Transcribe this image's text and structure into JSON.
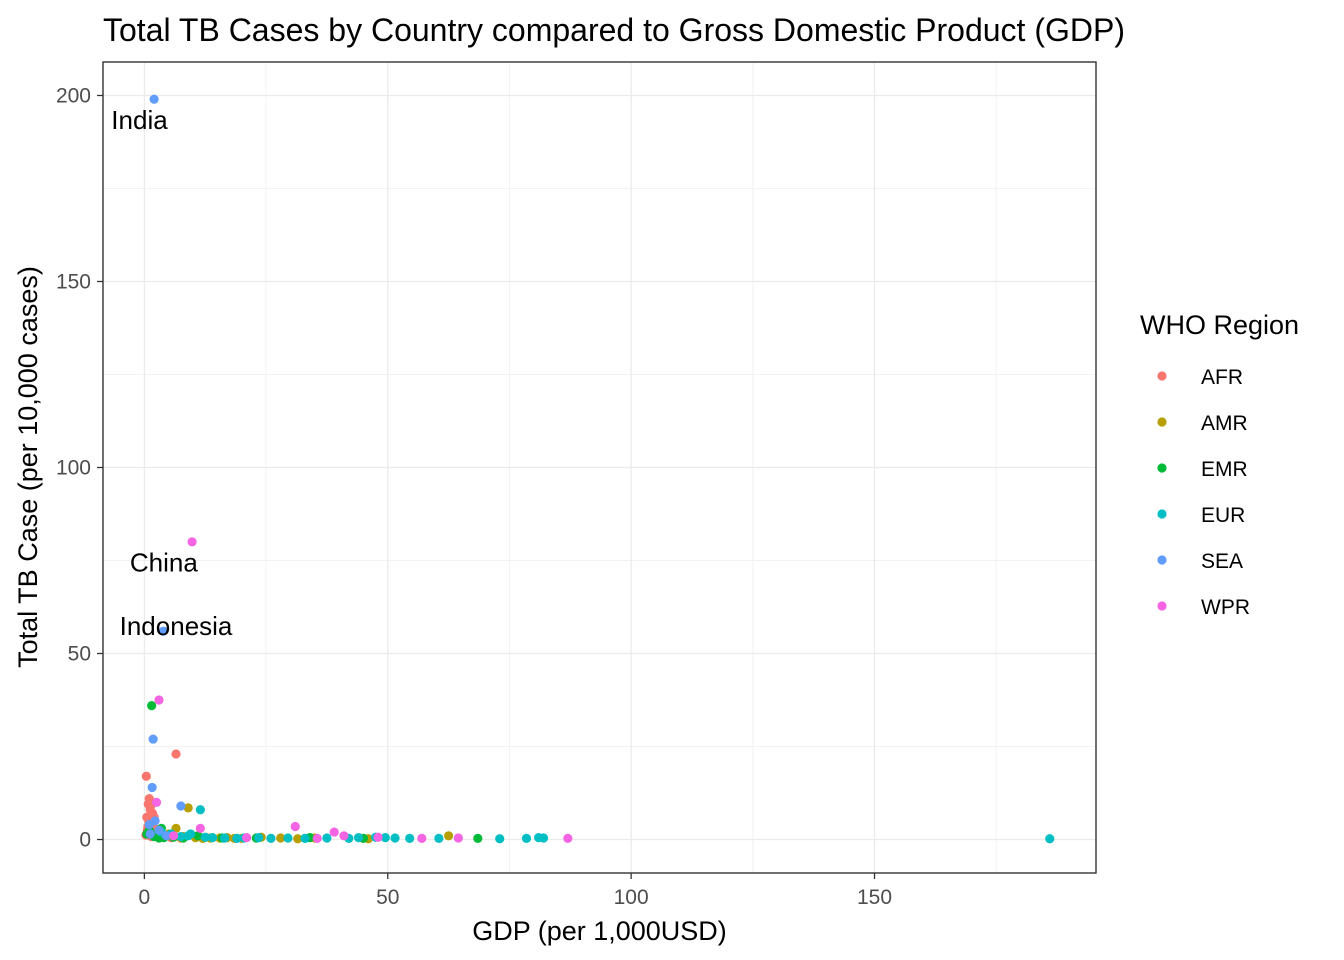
{
  "chart_data": {
    "type": "scatter",
    "title": "Total TB Cases by Country compared to Gross Domestic Product (GDP)",
    "xlabel": "GDP (per 1,000USD)",
    "ylabel": "Total TB Case (per 10,000 cases)",
    "xlim": [
      -8.5,
      195.5
    ],
    "ylim": [
      -9,
      209
    ],
    "x_ticks": [
      0,
      50,
      100,
      150
    ],
    "y_ticks": [
      0,
      50,
      100,
      150,
      200
    ],
    "grid": true,
    "legend": {
      "title": "WHO Region",
      "position": "right",
      "entries": [
        {
          "label": "AFR",
          "color": "#F8766D"
        },
        {
          "label": "AMR",
          "color": "#B79F00"
        },
        {
          "label": "EMR",
          "color": "#00BA38"
        },
        {
          "label": "EUR",
          "color": "#00BFC4"
        },
        {
          "label": "SEA",
          "color": "#619CFF"
        },
        {
          "label": "WPR",
          "color": "#F564E3"
        }
      ]
    },
    "annotations": [
      {
        "text": "India",
        "x": -1,
        "y": 191
      },
      {
        "text": "China",
        "x": 4,
        "y": 72
      },
      {
        "text": "Indonesia",
        "x": 6.5,
        "y": 55
      }
    ],
    "series": [
      {
        "name": "AFR",
        "points": [
          [
            0.4,
            17
          ],
          [
            1.0,
            11
          ],
          [
            1.3,
            9
          ],
          [
            0.8,
            9.5
          ],
          [
            1.6,
            10
          ],
          [
            1.2,
            8
          ],
          [
            0.5,
            6
          ],
          [
            0.9,
            5
          ],
          [
            1.5,
            4
          ],
          [
            2.1,
            3
          ],
          [
            0.7,
            3.5
          ],
          [
            1.8,
            2
          ],
          [
            2.5,
            1.5
          ],
          [
            3.0,
            1
          ],
          [
            0.6,
            2.5
          ],
          [
            1.1,
            1.5
          ],
          [
            4.0,
            0.8
          ],
          [
            5.5,
            0.5
          ],
          [
            6.5,
            23
          ],
          [
            7.5,
            0.4
          ],
          [
            2.8,
            0.6
          ],
          [
            1.4,
            0.8
          ],
          [
            0.3,
            1.2
          ],
          [
            2.0,
            6
          ],
          [
            1.7,
            7
          ]
        ]
      },
      {
        "name": "AMR",
        "points": [
          [
            9.0,
            8.5
          ],
          [
            6.5,
            3
          ],
          [
            5.0,
            1.5
          ],
          [
            8.0,
            0.8
          ],
          [
            10.5,
            0.5
          ],
          [
            12.0,
            0.3
          ],
          [
            15.5,
            0.4
          ],
          [
            17.0,
            0.5
          ],
          [
            20.0,
            0.3
          ],
          [
            24.0,
            0.6
          ],
          [
            28.0,
            0.4
          ],
          [
            31.5,
            0.2
          ],
          [
            46.0,
            0.2
          ],
          [
            62.5,
            1.0
          ],
          [
            35.0,
            0.4
          ],
          [
            11.0,
            1.0
          ],
          [
            7.5,
            0.6
          ],
          [
            13.5,
            0.4
          ],
          [
            18.5,
            0.3
          ]
        ]
      },
      {
        "name": "EMR",
        "points": [
          [
            1.5,
            36
          ],
          [
            3.5,
            3
          ],
          [
            0.5,
            1.5
          ],
          [
            1.0,
            2.5
          ],
          [
            2.5,
            1.5
          ],
          [
            4.0,
            0.5
          ],
          [
            6.0,
            0.6
          ],
          [
            8.0,
            0.4
          ],
          [
            11.0,
            1.0
          ],
          [
            16.0,
            0.4
          ],
          [
            23.0,
            0.4
          ],
          [
            34.0,
            0.5
          ],
          [
            45.0,
            0.3
          ],
          [
            68.5,
            0.3
          ],
          [
            2.0,
            0.8
          ],
          [
            3.0,
            0.4
          ]
        ]
      },
      {
        "name": "EUR",
        "points": [
          [
            11.5,
            8
          ],
          [
            3.5,
            2
          ],
          [
            5.5,
            1.5
          ],
          [
            9.0,
            1.0
          ],
          [
            14.0,
            0.5
          ],
          [
            16.5,
            0.4
          ],
          [
            19.0,
            0.3
          ],
          [
            20.5,
            0.4
          ],
          [
            23.5,
            0.5
          ],
          [
            26.0,
            0.3
          ],
          [
            29.5,
            0.4
          ],
          [
            33.0,
            0.3
          ],
          [
            37.5,
            0.4
          ],
          [
            42.0,
            0.3
          ],
          [
            44.0,
            0.5
          ],
          [
            47.5,
            0.6
          ],
          [
            49.5,
            0.5
          ],
          [
            51.5,
            0.4
          ],
          [
            54.5,
            0.3
          ],
          [
            60.5,
            0.3
          ],
          [
            73.0,
            0.2
          ],
          [
            78.5,
            0.3
          ],
          [
            82.0,
            0.4
          ],
          [
            81.0,
            0.5
          ],
          [
            186.0,
            0.2
          ],
          [
            7.5,
            0.8
          ],
          [
            12.5,
            0.6
          ],
          [
            9.5,
            1.5
          ]
        ]
      },
      {
        "name": "SEA",
        "points": [
          [
            2.0,
            199
          ],
          [
            3.9,
            56
          ],
          [
            1.8,
            27
          ],
          [
            1.6,
            14
          ],
          [
            7.5,
            9
          ],
          [
            2.2,
            5
          ],
          [
            1.0,
            4
          ],
          [
            3.0,
            2.5
          ],
          [
            4.5,
            1
          ],
          [
            1.2,
            1.5
          ]
        ]
      },
      {
        "name": "WPR",
        "points": [
          [
            9.8,
            80
          ],
          [
            3.0,
            37.5
          ],
          [
            2.5,
            10
          ],
          [
            11.5,
            3
          ],
          [
            31.0,
            3.5
          ],
          [
            39.0,
            2
          ],
          [
            41.0,
            1
          ],
          [
            48.0,
            0.6
          ],
          [
            57.0,
            0.3
          ],
          [
            64.5,
            0.4
          ],
          [
            87.0,
            0.3
          ],
          [
            35.5,
            0.3
          ],
          [
            21.0,
            0.5
          ],
          [
            6.0,
            1.0
          ]
        ]
      }
    ]
  }
}
